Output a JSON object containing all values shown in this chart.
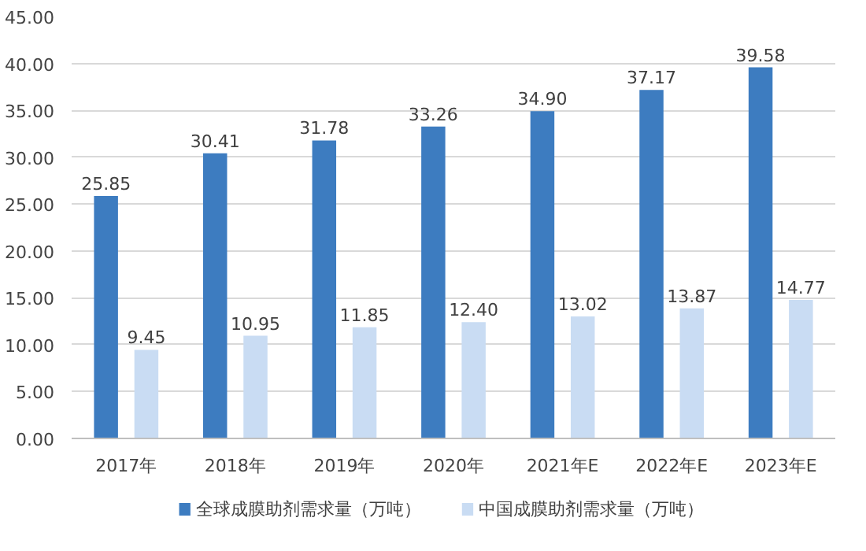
{
  "chart_data": {
    "type": "bar",
    "categories": [
      "2017年",
      "2018年",
      "2019年",
      "2020年",
      "2021年E",
      "2022年E",
      "2023年E"
    ],
    "series": [
      {
        "name": "全球成膜助剂需求量（万吨）",
        "color": "#3d7cc0",
        "values": [
          25.85,
          30.41,
          31.78,
          33.26,
          34.9,
          37.17,
          39.58
        ],
        "value_labels": [
          "25.85",
          "30.41",
          "31.78",
          "33.26",
          "34.90",
          "37.17",
          "39.58"
        ]
      },
      {
        "name": "中国成膜助剂需求量（万吨）",
        "color": "#c9dcf3",
        "values": [
          9.45,
          10.95,
          11.85,
          12.4,
          13.02,
          13.87,
          14.77
        ],
        "value_labels": [
          "9.45",
          "10.95",
          "11.85",
          "12.40",
          "13.02",
          "13.87",
          "14.77"
        ]
      }
    ],
    "ylim": [
      0,
      45
    ],
    "yticks": [
      {
        "value": 0,
        "label": "0.00"
      },
      {
        "value": 5,
        "label": "5.00"
      },
      {
        "value": 10,
        "label": "10.00"
      },
      {
        "value": 15,
        "label": "15.00"
      },
      {
        "value": 20,
        "label": "20.00"
      },
      {
        "value": 25,
        "label": "25.00"
      },
      {
        "value": 30,
        "label": "30.00"
      },
      {
        "value": 35,
        "label": "35.00"
      },
      {
        "value": 40,
        "label": "40.00"
      },
      {
        "value": 45,
        "label": "45.00"
      }
    ],
    "grid": "y",
    "legend": "bottom"
  }
}
